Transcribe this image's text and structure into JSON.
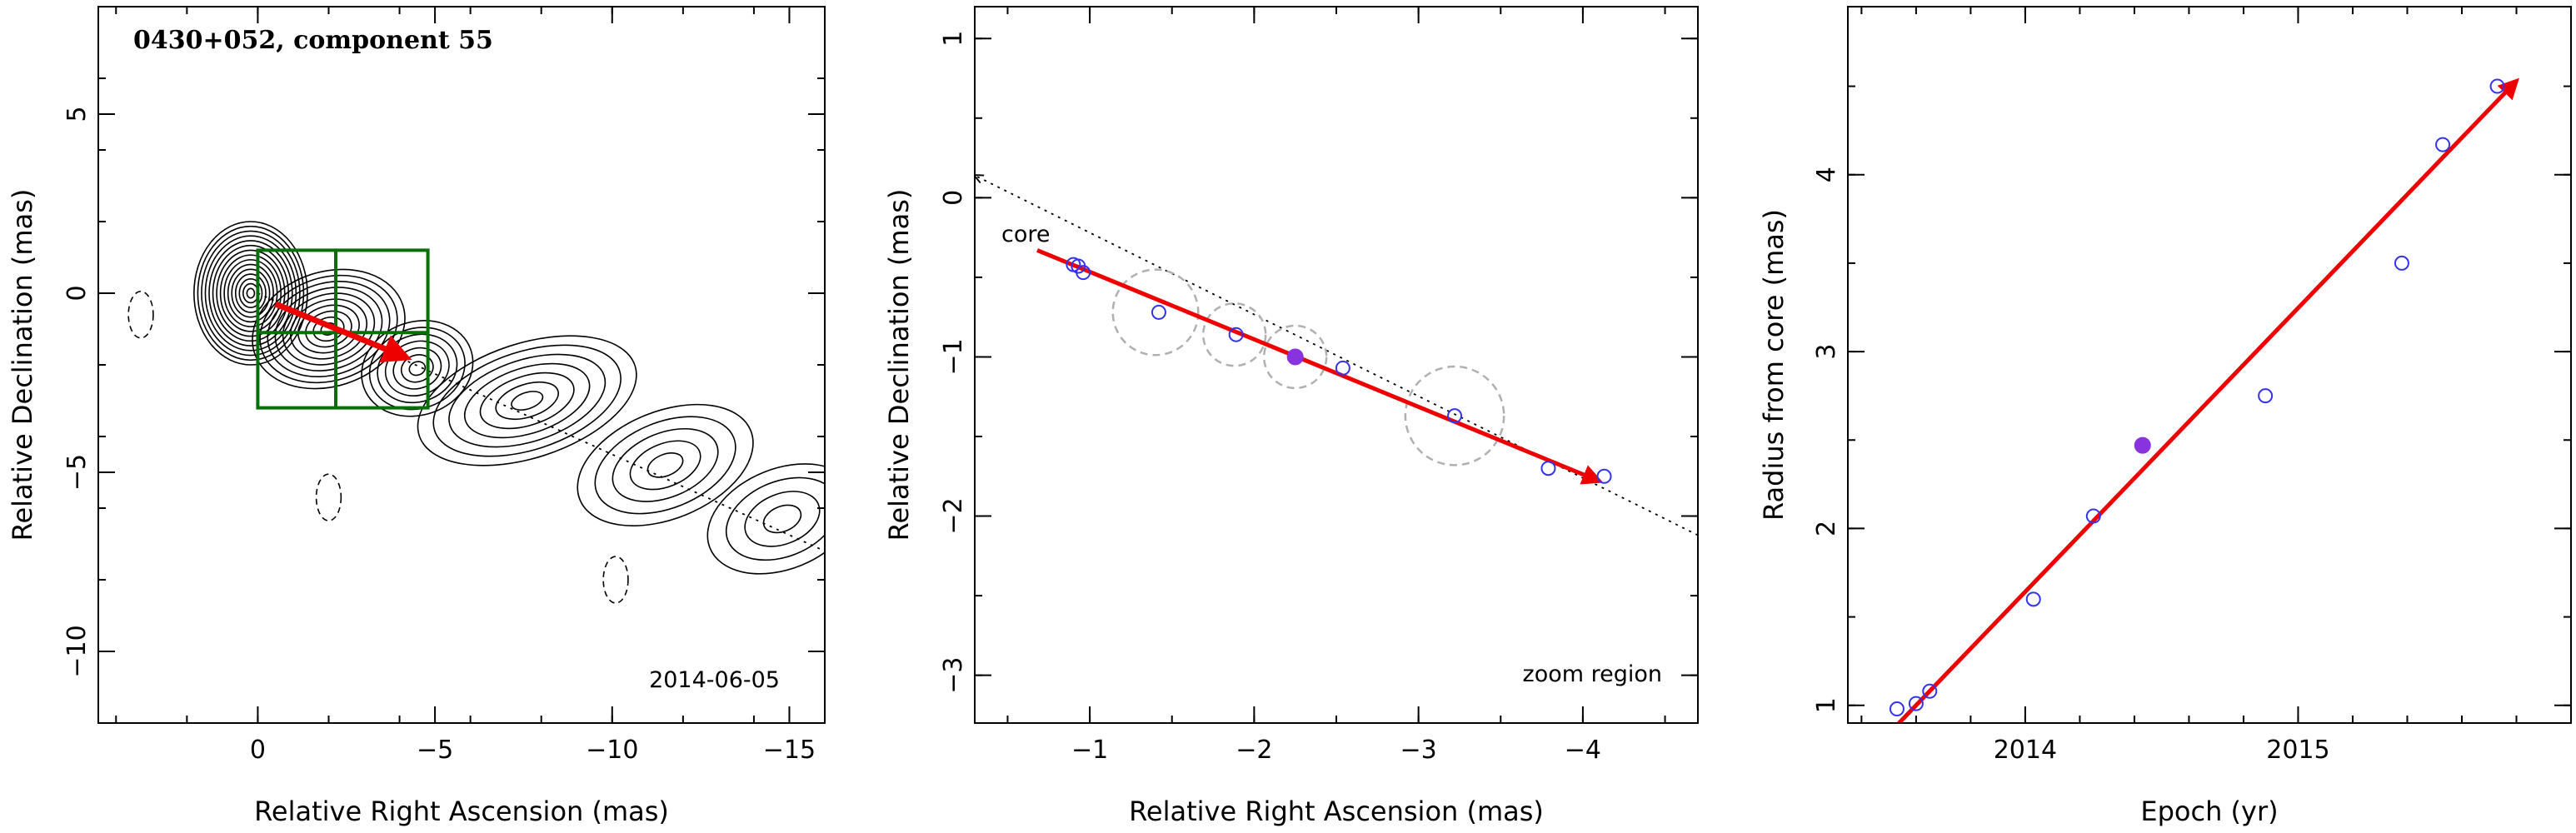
{
  "chart_data": [
    {
      "type": "contour",
      "title": "0430+052, component 55",
      "date_label": "2014-06-05",
      "xlabel": "Relative Right Ascension (mas)",
      "ylabel": "Relative Declination (mas)",
      "xlim": [
        4.5,
        -16
      ],
      "ylim": [
        -12,
        8
      ],
      "xticks": [
        0,
        -5,
        -10,
        -15
      ],
      "yticks": [
        5,
        0,
        -5,
        -10
      ],
      "zoom_box": {
        "x": [
          0,
          -4.8
        ],
        "y": [
          -3.2,
          1.2
        ]
      },
      "zoom_split": {
        "x": -2.2,
        "y": -1.1
      },
      "jet_axis": {
        "start": [
          0,
          0
        ],
        "end": [
          -16,
          -7.2
        ]
      },
      "component_vector": {
        "start": [
          -0.5,
          -0.3
        ],
        "end": [
          -4.2,
          -1.8
        ]
      },
      "negative_contours": [
        [
          -2.0,
          -5.7
        ],
        [
          -10.1,
          -8.0
        ],
        [
          3.3,
          -0.6
        ]
      ],
      "colors": {
        "contour": "#000000",
        "zoom_box": "#0a6e0a",
        "vector": "#ee0000"
      }
    },
    {
      "type": "scatter",
      "annotation_core": "core",
      "annotation_zoom": "zoom region",
      "xlabel": "Relative Right Ascension (mas)",
      "ylabel": "Relative Declination (mas)",
      "xlim": [
        -0.3,
        -4.7
      ],
      "ylim": [
        -3.3,
        1.2
      ],
      "xticks": [
        -1,
        -2,
        -3,
        -4
      ],
      "yticks": [
        1,
        0,
        -1,
        -2,
        -3
      ],
      "points": [
        {
          "x": -0.9,
          "y": -0.42
        },
        {
          "x": -0.93,
          "y": -0.43
        },
        {
          "x": -0.96,
          "y": -0.47
        },
        {
          "x": -1.42,
          "y": -0.72
        },
        {
          "x": -1.89,
          "y": -0.86
        },
        {
          "x": -2.54,
          "y": -1.07
        },
        {
          "x": -3.22,
          "y": -1.37
        },
        {
          "x": -3.79,
          "y": -1.7
        },
        {
          "x": -4.13,
          "y": -1.75
        }
      ],
      "highlight_point": {
        "x": -2.25,
        "y": -1.0
      },
      "gaussian_circles": [
        {
          "x": -1.4,
          "y": -0.72,
          "r": 0.26
        },
        {
          "x": -1.88,
          "y": -0.86,
          "r": 0.19
        },
        {
          "x": -2.25,
          "y": -1.0,
          "r": 0.19
        },
        {
          "x": -3.22,
          "y": -1.37,
          "r": 0.3
        }
      ],
      "core_line": {
        "start": [
          -4.7,
          -2.12
        ],
        "end": [
          -0.3,
          0.14
        ]
      },
      "vector": {
        "start": [
          -0.68,
          -0.33
        ],
        "end": [
          -4.1,
          -1.78
        ]
      },
      "colors": {
        "points": "#3333ee",
        "highlight": "#8833dd",
        "circles": "#b0b0b0",
        "vector": "#ee0000"
      }
    },
    {
      "type": "scatter",
      "xlabel": "Epoch (yr)",
      "ylabel": "Radius from core (mas)",
      "xlim": [
        2013.35,
        2016.0
      ],
      "ylim": [
        0.9,
        4.95
      ],
      "xticks": [
        2014,
        2015
      ],
      "yticks": [
        1,
        2,
        3,
        4
      ],
      "points": [
        {
          "x": 2013.53,
          "y": 0.98
        },
        {
          "x": 2013.6,
          "y": 1.01
        },
        {
          "x": 2013.65,
          "y": 1.08
        },
        {
          "x": 2014.03,
          "y": 1.6
        },
        {
          "x": 2014.25,
          "y": 2.07
        },
        {
          "x": 2014.88,
          "y": 2.75
        },
        {
          "x": 2015.38,
          "y": 3.5
        },
        {
          "x": 2015.53,
          "y": 4.17
        },
        {
          "x": 2015.73,
          "y": 4.5
        }
      ],
      "highlight_point": {
        "x": 2014.43,
        "y": 2.47
      },
      "fit_line": {
        "start": [
          2013.5,
          0.84
        ],
        "end": [
          2015.8,
          4.53
        ]
      },
      "colors": {
        "points": "#3333ee",
        "highlight": "#8833dd",
        "vector": "#ee0000"
      }
    }
  ]
}
